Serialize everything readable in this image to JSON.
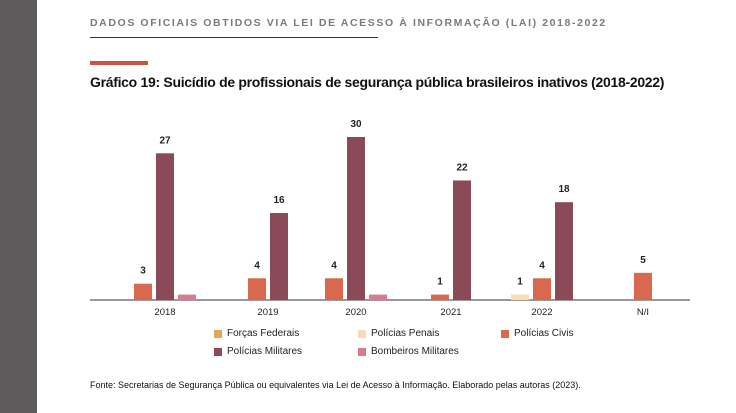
{
  "page": {
    "header": "DADOS OFICIAIS OBTIDOS VIA LEI DE ACESSO À INFORMAÇÃO (LAI) 2018-2022",
    "source": "Fonte: Secretarias de Segurança Pública ou equivalentes via Lei de Acesso à Informação. Elaborado pelas autoras (2023)."
  },
  "chart_data": {
    "type": "bar",
    "title": "Gráfico 19: Suicídio de profissionais de segurança pública brasileiros inativos (2018-2022)",
    "categories": [
      "2018",
      "2019",
      "2020",
      "2021",
      "2022",
      "N/I"
    ],
    "ylim": [
      0,
      30
    ],
    "grid": false,
    "legend_position": "bottom",
    "series": [
      {
        "name": "Forças Federais",
        "color": "#e0a65a",
        "values": [
          null,
          null,
          null,
          null,
          null,
          null
        ]
      },
      {
        "name": "Polícias Penais",
        "color": "#f6ddb5",
        "values": [
          null,
          null,
          null,
          null,
          1,
          null
        ]
      },
      {
        "name": "Polícias Civis",
        "color": "#d8694e",
        "values": [
          3,
          4,
          4,
          1,
          4,
          5
        ]
      },
      {
        "name": "Polícias Militares",
        "color": "#8b4a58",
        "values": [
          27,
          16,
          30,
          22,
          18,
          null
        ]
      },
      {
        "name": "Bombeiros Militares",
        "color": "#d97c8e",
        "values": [
          1,
          null,
          1,
          null,
          null,
          null
        ]
      }
    ],
    "data_labels": [
      [
        null,
        null,
        null,
        null,
        null,
        null
      ],
      [
        null,
        null,
        null,
        null,
        "1",
        null
      ],
      [
        "3",
        "4",
        "4",
        "1",
        "4",
        "5"
      ],
      [
        "27",
        "16",
        "30",
        "22",
        "18",
        null
      ],
      [
        null,
        null,
        null,
        null,
        null,
        null
      ]
    ]
  }
}
